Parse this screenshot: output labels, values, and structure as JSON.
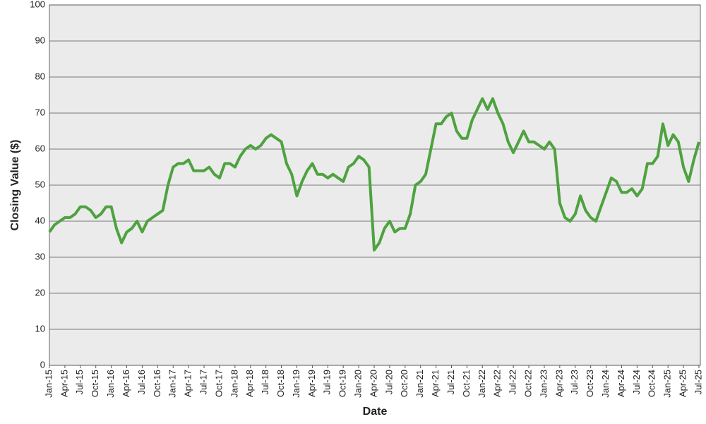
{
  "chart_data": {
    "type": "line",
    "x_label": "Date",
    "y_label": "Closing Value ($)",
    "categories": [
      "Jan-15",
      null,
      null,
      "Apr-15",
      null,
      null,
      "Jul-15",
      null,
      null,
      "Oct-15",
      null,
      null,
      "Jan-16",
      null,
      null,
      "Apr-16",
      null,
      null,
      "Jul-16",
      null,
      null,
      "Oct-16",
      null,
      null,
      "Jan-17",
      null,
      null,
      "Apr-17",
      null,
      null,
      "Jul-17",
      null,
      null,
      "Oct-17",
      null,
      null,
      "Jan-18",
      null,
      null,
      "Apr-18",
      null,
      null,
      "Jul-18",
      null,
      null,
      "Oct-18",
      null,
      null,
      "Jan-19",
      null,
      null,
      "Apr-19",
      null,
      null,
      "Jul-19",
      null,
      null,
      "Oct-19",
      null,
      null,
      "Jan-20",
      null,
      null,
      "Apr-20",
      null,
      null,
      "Jul-20",
      null,
      null,
      "Oct-20",
      null,
      null,
      "Jan-21",
      null,
      null,
      "Apr-21",
      null,
      null,
      "Jul-21",
      null,
      null,
      "Oct-21",
      null,
      null,
      "Jan-22",
      null,
      null,
      "Apr-22",
      null,
      null,
      "Jul-22",
      null,
      null,
      "Oct-22",
      null,
      null,
      "Jan-23",
      null,
      null,
      "Apr-23",
      null,
      null,
      "Jul-23",
      null,
      null,
      "Oct-23",
      null,
      null,
      "Jan-24",
      null,
      null,
      "Apr-24",
      null,
      null,
      "Jul-24",
      null,
      null,
      "Oct-24",
      null,
      null,
      "Jan-25",
      null,
      null,
      "Apr-25",
      null,
      null,
      "Jul-25"
    ],
    "values": [
      37,
      39,
      40,
      41,
      41,
      42,
      44,
      44,
      43,
      41,
      42,
      44,
      44,
      38,
      34,
      37,
      38,
      40,
      37,
      40,
      41,
      42,
      43,
      50,
      55,
      56,
      56,
      57,
      54,
      54,
      54,
      55,
      53,
      52,
      56,
      56,
      55,
      58,
      60,
      61,
      60,
      61,
      63,
      64,
      63,
      62,
      56,
      53,
      47,
      51,
      54,
      56,
      53,
      53,
      52,
      53,
      52,
      51,
      55,
      56,
      58,
      57,
      55,
      32,
      34,
      38,
      40,
      37,
      38,
      38,
      42,
      50,
      51,
      53,
      60,
      67,
      67,
      69,
      70,
      65,
      63,
      63,
      68,
      71,
      74,
      71,
      74,
      70,
      67,
      62,
      59,
      62,
      65,
      62,
      62,
      61,
      60,
      62,
      60,
      45,
      41,
      40,
      42,
      47,
      43,
      41,
      40,
      44,
      48,
      52,
      51,
      48,
      48,
      49,
      47,
      49,
      56,
      56,
      58,
      67,
      61,
      64,
      62,
      55,
      51,
      57,
      62
    ],
    "color": "#4ea23f",
    "ylim": [
      0,
      100
    ],
    "yticks": [
      0,
      10,
      20,
      30,
      40,
      50,
      60,
      70,
      80,
      90,
      100
    ],
    "grid": true
  }
}
